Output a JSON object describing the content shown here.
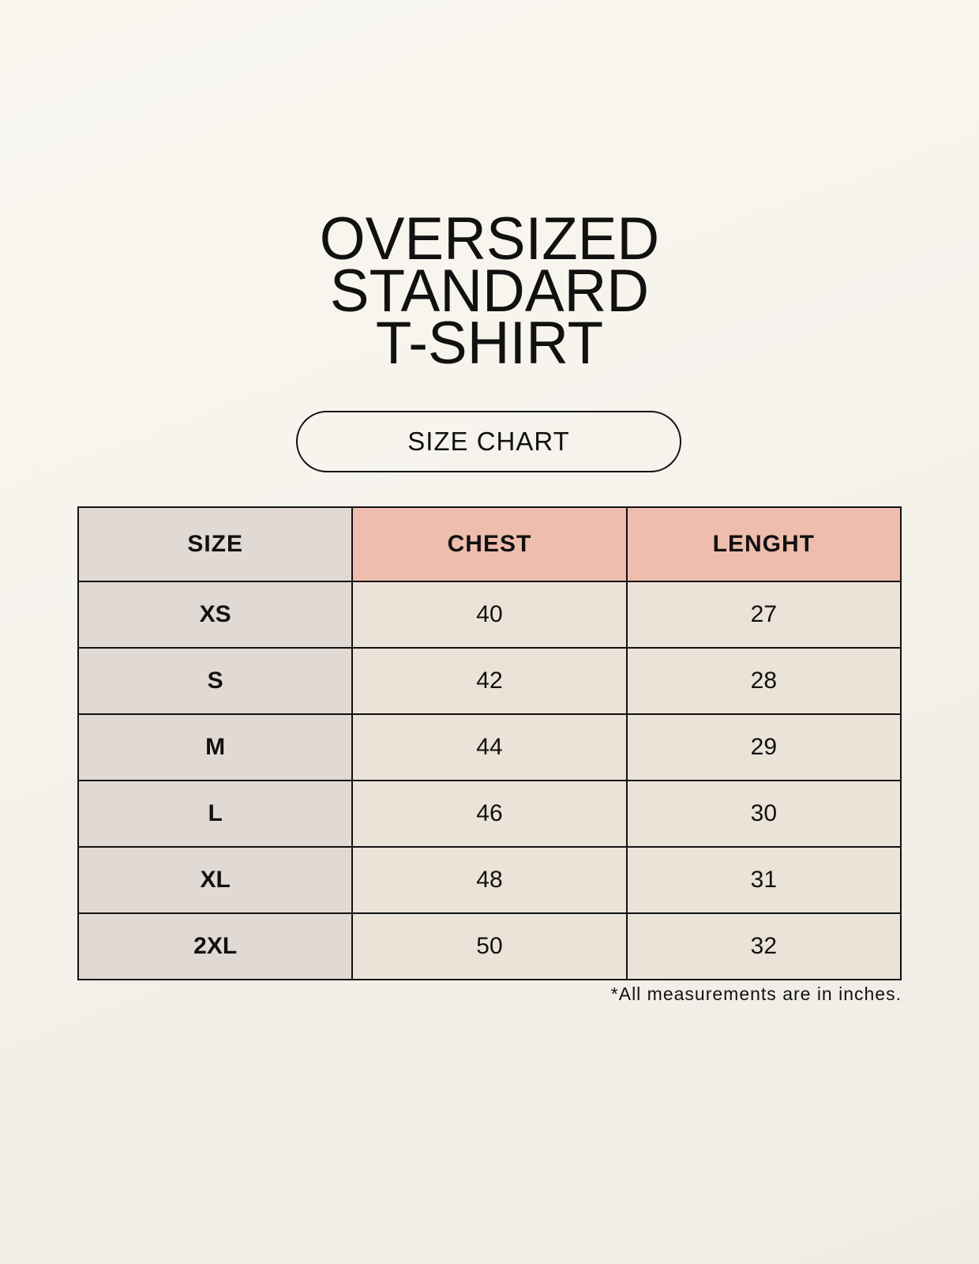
{
  "title_lines": [
    "OVERSIZED",
    "STANDARD",
    "T-SHIRT"
  ],
  "badge": "SIZE CHART",
  "table": {
    "headers": [
      "SIZE",
      "CHEST",
      "LENGHT"
    ],
    "rows": [
      [
        "XS",
        "40",
        "27"
      ],
      [
        "S",
        "42",
        "28"
      ],
      [
        "M",
        "44",
        "29"
      ],
      [
        "L",
        "46",
        "30"
      ],
      [
        "XL",
        "48",
        "31"
      ],
      [
        "2XL",
        "50",
        "32"
      ]
    ]
  },
  "footnote": "*All measurements are in inches.",
  "colors": {
    "size_column": "#e1d9d3",
    "header_accent": "#efbdae",
    "cell": "#ebe3d8",
    "background": "#f7f4ee"
  }
}
